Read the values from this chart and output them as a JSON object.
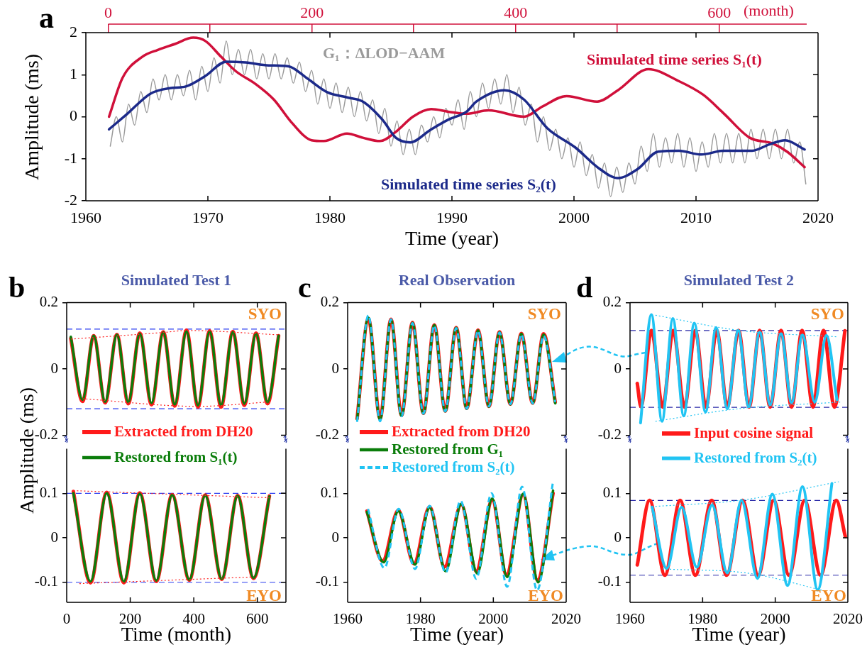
{
  "chart_data": [
    {
      "type": "line",
      "xlabel": "Time (year)",
      "ylabel": "Amplitude (ms)",
      "x2label": "(month)",
      "annotations": [
        "a"
      ],
      "xlim": [
        1960,
        2020
      ],
      "xticks": [
        1960,
        1970,
        1980,
        1990,
        2000,
        2010,
        2020
      ],
      "ylim": [
        -2,
        2
      ],
      "yticks": [
        -2,
        -1,
        0,
        1,
        2
      ],
      "x2lim": [
        -22,
        697
      ],
      "x2ticks": [
        0,
        {
          "value": 100,
          "label": null
        },
        200,
        {
          "value": 300,
          "label": null
        },
        400,
        {
          "value": 500,
          "label": null
        },
        600
      ],
      "series": [
        {
          "name": "G₁：ΔLOD−AAM",
          "color": "#9a9a9a",
          "x": [
            1962,
            1962.5,
            1963,
            1963.5,
            1964,
            1964.5,
            1965,
            1965.5,
            1966,
            1966.5,
            1967,
            1967.5,
            1968,
            1968.5,
            1969,
            1969.5,
            1970,
            1970.5,
            1971,
            1971.5,
            1972,
            1972.5,
            1973,
            1973.5,
            1974,
            1974.5,
            1975,
            1975.5,
            1976,
            1976.5,
            1977,
            1977.5,
            1978,
            1978.5,
            1979,
            1979.5,
            1980,
            1980.5,
            1981,
            1981.5,
            1982,
            1982.5,
            1983,
            1983.5,
            1984,
            1984.5,
            1985,
            1985.5,
            1986,
            1986.5,
            1987,
            1987.5,
            1988,
            1988.5,
            1989,
            1989.5,
            1990,
            1990.5,
            1991,
            1991.5,
            1992,
            1992.5,
            1993,
            1993.5,
            1994,
            1994.5,
            1995,
            1995.5,
            1996,
            1996.5,
            1997,
            1997.5,
            1998,
            1998.5,
            1999,
            1999.5,
            2000,
            2000.5,
            2001,
            2001.5,
            2002,
            2002.5,
            2003,
            2003.5,
            2004,
            2004.5,
            2005,
            2005.5,
            2006,
            2006.5,
            2007,
            2007.5,
            2008,
            2008.5,
            2009,
            2009.5,
            2010,
            2010.5,
            2011,
            2011.5,
            2012,
            2012.5,
            2013,
            2013.5,
            2014,
            2014.5,
            2015,
            2015.5,
            2016,
            2016.5,
            2017,
            2017.5,
            2018,
            2018.5,
            2019
          ],
          "values": [
            -0.7,
            0.0,
            -0.6,
            0.3,
            -0.2,
            0.6,
            0.1,
            0.9,
            0.4,
            1.0,
            0.4,
            1.0,
            0.5,
            1.1,
            0.4,
            1.2,
            0.6,
            1.4,
            0.8,
            1.8,
            1.0,
            1.6,
            1.0,
            1.6,
            0.9,
            1.5,
            0.9,
            1.5,
            0.9,
            1.4,
            0.8,
            1.3,
            0.6,
            1.1,
            0.3,
            0.9,
            0.2,
            0.8,
            0.1,
            0.7,
            0.0,
            0.6,
            -0.1,
            0.4,
            -0.4,
            0.2,
            -0.7,
            -0.1,
            -0.9,
            -0.3,
            -0.9,
            -0.2,
            -0.6,
            0.0,
            -0.5,
            0.2,
            -0.2,
            0.4,
            -0.3,
            0.6,
            0.0,
            0.8,
            0.2,
            0.9,
            0.3,
            1.0,
            0.1,
            0.7,
            -0.2,
            0.3,
            -0.6,
            0.0,
            -0.8,
            -0.3,
            -1.0,
            -0.5,
            -1.2,
            -0.6,
            -1.4,
            -0.9,
            -1.7,
            -1.1,
            -1.9,
            -1.2,
            -1.8,
            -1.1,
            -1.6,
            -0.7,
            -1.3,
            -0.4,
            -1.2,
            -0.5,
            -1.1,
            -0.4,
            -1.2,
            -0.5,
            -1.3,
            -0.6,
            -1.2,
            -0.4,
            -1.1,
            -0.4,
            -1.1,
            -0.4,
            -1.1,
            -0.3,
            -1.0,
            -0.3,
            -1.0,
            -0.3,
            -1.0,
            -0.3,
            -1.1,
            -0.6,
            -1.6
          ]
        },
        {
          "name": "Simulated time series S₁(t)",
          "color": "#d0103a",
          "x": [
            1961.9,
            1963.0,
            1964.6,
            1965.9,
            1967.3,
            1968.8,
            1969.8,
            1971.1,
            1972.3,
            1973.9,
            1975.4,
            1976.9,
            1978.5,
            1979.5,
            1981.4,
            1982.7,
            1984.1,
            1985.4,
            1986.8,
            1988.3,
            1989.7,
            1991.2,
            1993.0,
            1995.9,
            1997.4,
            1999.4,
            2001.9,
            2003.6,
            2006.1,
            2008.5,
            2010.6,
            2012.3,
            2014.4,
            2016.3,
            2017.5,
            2018.9
          ],
          "values": [
            0.0,
            0.92,
            1.42,
            1.59,
            1.73,
            1.88,
            1.8,
            1.42,
            1.08,
            0.78,
            0.41,
            -0.15,
            -0.56,
            -0.58,
            -0.4,
            -0.5,
            -0.58,
            -0.36,
            0.0,
            0.18,
            0.12,
            0.07,
            0.15,
            0.0,
            0.24,
            0.49,
            0.36,
            0.63,
            1.13,
            0.86,
            0.52,
            0.07,
            -0.5,
            -0.64,
            -0.84,
            -1.2
          ]
        },
        {
          "name": "Simulated time series S₂(t)",
          "color": "#1c2a8a",
          "x": [
            1961.9,
            1963.4,
            1965.3,
            1966.9,
            1968.2,
            1969.8,
            1971.5,
            1973.1,
            1975.0,
            1976.6,
            1978.1,
            1979.8,
            1981.4,
            1982.7,
            1984.3,
            1985.4,
            1986.6,
            1988.2,
            1989.7,
            1991.2,
            1992.0,
            1994.3,
            1995.9,
            1997.8,
            2000.1,
            2002.1,
            2003.6,
            2005.2,
            2006.9,
            2008.6,
            2010.4,
            2012.3,
            2014.6,
            2016.0,
            2017.3,
            2018.9
          ],
          "values": [
            -0.3,
            0.07,
            0.55,
            0.68,
            0.72,
            0.97,
            1.31,
            1.29,
            1.22,
            1.2,
            0.92,
            0.58,
            0.46,
            0.36,
            -0.07,
            -0.5,
            -0.61,
            -0.32,
            -0.07,
            0.12,
            0.36,
            0.63,
            0.41,
            -0.27,
            -0.73,
            -1.24,
            -1.46,
            -1.25,
            -0.83,
            -0.81,
            -0.9,
            -0.81,
            -0.81,
            -0.66,
            -0.56,
            -0.78
          ]
        }
      ]
    },
    {
      "type": "line",
      "title": "Simulated Test 1",
      "ylabel": "Amplitude (ms)",
      "annotations": [
        "b",
        "SYO"
      ],
      "xlim": [
        0,
        690
      ],
      "xticks": [
        0,
        200,
        400,
        600
      ],
      "ylim": [
        -0.2,
        0.2
      ],
      "yticks": [
        0.2,
        0,
        -0.2
      ],
      "tick_labels": "y",
      "ref_lines": [
        {
          "axis": "y",
          "value": 0.12,
          "color": "#2b3cf0",
          "line_style": "dashed"
        },
        {
          "axis": "y",
          "value": -0.12,
          "color": "#2b3cf0",
          "line_style": "dashed"
        }
      ],
      "series": [
        {
          "color": "#ff1a1a",
          "x": [
            13,
            50,
            85,
            121,
            158,
            194,
            230,
            267,
            304,
            340,
            377,
            413,
            450,
            486,
            523,
            559,
            596,
            632,
            667
          ],
          "values": [
            0.092,
            -0.098,
            0.1,
            -0.102,
            0.104,
            -0.105,
            0.108,
            -0.108,
            0.112,
            -0.112,
            0.117,
            -0.115,
            0.115,
            -0.115,
            0.113,
            -0.11,
            0.108,
            -0.105,
            0.1
          ]
        },
        {
          "color": "#0b7d0b",
          "x": [
            13,
            50,
            85,
            121,
            158,
            194,
            230,
            267,
            304,
            340,
            377,
            413,
            450,
            486,
            523,
            559,
            596,
            632,
            667
          ],
          "values": [
            0.097,
            -0.093,
            0.1,
            -0.099,
            0.103,
            -0.1,
            0.106,
            -0.103,
            0.11,
            -0.107,
            0.113,
            -0.11,
            0.113,
            -0.109,
            0.111,
            -0.105,
            0.106,
            -0.1,
            0.1
          ]
        },
        {
          "color": "#ff2020",
          "line_style": "dotted",
          "x": [
            13,
            304,
            377,
            667
          ],
          "values": [
            0.09,
            0.11,
            0.116,
            0.103
          ]
        },
        {
          "color": "#ff2020",
          "line_style": "dotted",
          "x": [
            50,
            413,
            632
          ],
          "values": [
            -0.09,
            -0.113,
            -0.1
          ]
        }
      ]
    },
    {
      "type": "line",
      "xlabel": "Time (month)",
      "annotations": [
        "EYO"
      ],
      "xlim": [
        0,
        690
      ],
      "xticks": [
        0,
        200,
        400,
        600
      ],
      "ylim": [
        -0.145,
        0.2
      ],
      "yticks": [
        0.1,
        0,
        -0.1
      ],
      "legend": "top left",
      "ref_lines": [
        {
          "axis": "y",
          "value": 0.1,
          "color": "#2b3cf0",
          "line_style": "dashed"
        },
        {
          "axis": "y",
          "value": -0.1,
          "color": "#2b3cf0",
          "line_style": "dashed"
        }
      ],
      "series": [
        {
          "name": "Extracted from DH20",
          "color": "#ff1a1a",
          "x": [
            21,
            75,
            126,
            180,
            230,
            282,
            332,
            386,
            436,
            488,
            538,
            588,
            638
          ],
          "values": [
            0.104,
            -0.101,
            0.102,
            -0.101,
            0.101,
            -0.098,
            0.097,
            -0.095,
            0.096,
            -0.093,
            0.095,
            -0.091,
            0.094
          ]
        },
        {
          "name": "Restored from S₁(t)",
          "color": "#0b7d0b",
          "x": [
            21,
            75,
            126,
            180,
            230,
            282,
            332,
            386,
            436,
            488,
            538,
            588,
            638
          ],
          "values": [
            0.1,
            -0.098,
            0.1,
            -0.098,
            0.099,
            -0.096,
            0.096,
            -0.094,
            0.095,
            -0.092,
            0.094,
            -0.09,
            0.093
          ]
        },
        {
          "color": "#ff2020",
          "line_style": "dotted",
          "x": [
            21,
            638
          ],
          "values": [
            0.106,
            0.09
          ]
        },
        {
          "color": "#ff2020",
          "line_style": "dotted",
          "x": [
            40,
            588
          ],
          "values": [
            -0.103,
            -0.088
          ]
        }
      ]
    },
    {
      "type": "line",
      "title": "Real Observation",
      "annotations": [
        "c",
        "SYO"
      ],
      "xlim": [
        1960,
        2020
      ],
      "xticks": [
        1960,
        1980,
        2000,
        2020
      ],
      "ylim": [
        -0.2,
        0.2
      ],
      "yticks": [
        0.2,
        0,
        -0.2
      ],
      "tick_labels": "y",
      "series": [
        {
          "color": "#ff1a1a",
          "x": [
            1962.6,
            1965.7,
            1968.9,
            1971.9,
            1974.8,
            1977.8,
            1980.8,
            1983.8,
            1986.8,
            1989.8,
            1992.7,
            1995.8,
            1998.8,
            2001.7,
            2004.7,
            2007.7,
            2010.8,
            2013.8,
            2017.0
          ],
          "values": [
            -0.15,
            0.152,
            -0.15,
            0.15,
            -0.14,
            0.14,
            -0.134,
            0.133,
            -0.127,
            0.125,
            -0.119,
            0.117,
            -0.113,
            0.112,
            -0.106,
            0.107,
            -0.103,
            0.106,
            -0.1
          ]
        },
        {
          "color": "#0b7d0b",
          "x": [
            1962.6,
            1965.7,
            1968.9,
            1971.9,
            1974.8,
            1977.8,
            1980.8,
            1983.8,
            1986.8,
            1989.8,
            1992.7,
            1995.8,
            1998.8,
            2001.7,
            2004.7,
            2007.7,
            2010.8,
            2013.8,
            2017.0
          ],
          "values": [
            -0.153,
            0.154,
            -0.153,
            0.149,
            -0.142,
            0.139,
            -0.135,
            0.132,
            -0.128,
            0.124,
            -0.12,
            0.116,
            -0.114,
            0.111,
            -0.107,
            0.106,
            -0.104,
            0.104,
            -0.104
          ]
        },
        {
          "color": "#21c4f3",
          "line_style": "dashed",
          "x": [
            1962.6,
            1965.7,
            1968.9,
            1971.9,
            1974.8,
            1977.8,
            1980.8,
            1983.8,
            1986.8,
            1989.8,
            1992.7,
            1995.8,
            1998.8,
            2001.7,
            2004.7,
            2007.7,
            2010.8,
            2013.8,
            2017.0
          ],
          "values": [
            -0.16,
            0.162,
            -0.158,
            0.15,
            -0.143,
            0.138,
            -0.135,
            0.131,
            -0.128,
            0.123,
            -0.12,
            0.115,
            -0.113,
            0.11,
            -0.106,
            0.104,
            -0.104,
            0.1,
            -0.1
          ]
        }
      ]
    },
    {
      "type": "line",
      "xlabel": "Time (year)",
      "annotations": [
        "EYO"
      ],
      "xlim": [
        1960,
        2020
      ],
      "xticks": [
        1960,
        1980,
        2000,
        2020
      ],
      "ylim": [
        -0.145,
        0.2
      ],
      "yticks": [
        0.1,
        0,
        -0.1
      ],
      "legend": "top left",
      "series": [
        {
          "name": "Extracted from DH20",
          "color": "#ff1a1a",
          "x": [
            1965.3,
            1969.6,
            1973.9,
            1978.2,
            1982.5,
            1986.6,
            1991.2,
            1995.3,
            1999.7,
            2003.6,
            2008.2,
            2012.1,
            2016.4
          ],
          "values": [
            0.06,
            -0.052,
            0.062,
            -0.058,
            0.07,
            -0.065,
            0.075,
            -0.075,
            0.085,
            -0.083,
            0.097,
            -0.095,
            0.1
          ]
        },
        {
          "name": "Restored from G₁",
          "color": "#0b7d0b",
          "x": [
            1965.3,
            1969.9,
            1973.9,
            1978.5,
            1982.5,
            1986.9,
            1991.2,
            1995.6,
            1999.7,
            2003.8,
            2008.2,
            2012.3,
            2016.4
          ],
          "values": [
            0.058,
            -0.055,
            0.06,
            -0.06,
            0.068,
            -0.075,
            0.076,
            -0.08,
            0.088,
            -0.088,
            0.099,
            -0.1,
            0.106
          ]
        },
        {
          "name": "Restored from S₂(t)",
          "color": "#21c4f3",
          "line_style": "dashed",
          "x": [
            1965.6,
            1970.1,
            1974.0,
            1978.5,
            1982.5,
            1986.9,
            1991.0,
            1995.3,
            1999.5,
            2003.8,
            2007.9,
            2012.0,
            2016.3
          ],
          "values": [
            0.065,
            -0.068,
            0.065,
            -0.07,
            0.072,
            -0.078,
            0.083,
            -0.092,
            0.1,
            -0.11,
            0.115,
            -0.118,
            0.122
          ]
        }
      ]
    },
    {
      "type": "line",
      "title": "Simulated Test 2",
      "annotations": [
        "d",
        "SYO"
      ],
      "xlim": [
        1960,
        2020
      ],
      "xticks": [
        1960,
        1980,
        2000,
        2020
      ],
      "ylim": [
        -0.2,
        0.2
      ],
      "yticks": [
        0.2,
        0,
        -0.2
      ],
      "tick_labels": "y",
      "ref_lines": [
        {
          "axis": "y",
          "value": 0.116,
          "color": "#2a2aa8",
          "line_style": "dashed"
        },
        {
          "axis": "y",
          "value": -0.116,
          "color": "#2a2aa8",
          "line_style": "dashed"
        }
      ],
      "series": [
        {
          "color": "#ff1a1a",
          "x": [
            1962.0,
            1963.0,
            1965.9,
            1969.0,
            1971.9,
            1975.0,
            1978.0,
            1980.9,
            1983.9,
            1986.8,
            1989.9,
            1992.8,
            1995.7,
            1998.6,
            2001.6,
            2004.5,
            2007.4,
            2010.4,
            2013.3,
            2016.3,
            2019.2
          ],
          "values": [
            -0.044,
            -0.114,
            0.116,
            -0.115,
            0.116,
            -0.115,
            0.116,
            -0.115,
            0.116,
            -0.115,
            0.116,
            -0.115,
            0.116,
            -0.115,
            0.116,
            -0.115,
            0.116,
            -0.115,
            0.116,
            -0.115,
            0.115
          ]
        },
        {
          "color": "#21c4f3",
          "x": [
            1962.9,
            1965.9,
            1968.8,
            1971.8,
            1974.8,
            1977.7,
            1980.8,
            1983.7,
            1986.8,
            1989.8,
            1992.7,
            1995.7,
            1998.6,
            2001.6,
            2004.5,
            2007.5,
            2010.9,
            2014.1,
            2017.0
          ],
          "values": [
            -0.163,
            0.164,
            -0.158,
            0.152,
            -0.142,
            0.138,
            -0.13,
            0.125,
            -0.12,
            0.116,
            -0.114,
            0.111,
            -0.108,
            0.106,
            -0.102,
            0.102,
            -0.1,
            0.101,
            -0.093
          ]
        },
        {
          "color": "#21c4f3",
          "line_style": "dotted",
          "x": [
            1967.0,
            1990.3,
            2017.0
          ],
          "values": [
            0.162,
            0.116,
            0.097
          ]
        },
        {
          "color": "#21c4f3",
          "line_style": "dotted",
          "x": [
            1967.0,
            1990.0,
            2018.0
          ],
          "values": [
            -0.158,
            -0.12,
            -0.1
          ]
        }
      ]
    },
    {
      "type": "line",
      "xlabel": "Time (year)",
      "annotations": [
        "EYO"
      ],
      "xlim": [
        1960,
        2020
      ],
      "xticks": [
        1960,
        1980,
        2000,
        2020
      ],
      "ylim": [
        -0.145,
        0.2
      ],
      "yticks": [
        0.1,
        0,
        -0.1
      ],
      "legend": "top left",
      "ref_lines": [
        {
          "axis": "y",
          "value": 0.084,
          "color": "#2a2aa8",
          "line_style": "dashed"
        },
        {
          "axis": "y",
          "value": -0.084,
          "color": "#2a2aa8",
          "line_style": "dashed"
        }
      ],
      "series": [
        {
          "name": "Input cosine signal",
          "color": "#ff1a1a",
          "x": [
            1962.0,
            1965.4,
            1969.6,
            1973.8,
            1978.0,
            1982.5,
            1986.6,
            1991.0,
            1995.3,
            1999.6,
            2003.8,
            2008.1,
            2012.5,
            2016.8,
            2019.3
          ],
          "values": [
            -0.061,
            0.084,
            -0.084,
            0.084,
            -0.084,
            0.084,
            -0.084,
            0.084,
            -0.084,
            0.084,
            -0.084,
            0.084,
            -0.084,
            0.084,
            0.003
          ]
        },
        {
          "name": "Restored from S₂(t)",
          "color": "#21c4f3",
          "x": [
            1966.1,
            1970.1,
            1974.2,
            1978.4,
            1982.6,
            1986.8,
            1990.7,
            1995.1,
            1999.2,
            2003.4,
            2007.5,
            2011.7,
            2015.6
          ],
          "values": [
            0.069,
            -0.069,
            0.069,
            -0.066,
            0.074,
            -0.079,
            0.084,
            -0.091,
            0.098,
            -0.107,
            0.115,
            -0.117,
            0.122
          ]
        },
        {
          "color": "#21c4f3",
          "line_style": "dotted",
          "x": [
            1966,
            1991,
            2017.5
          ],
          "values": [
            0.07,
            0.085,
            0.126
          ]
        },
        {
          "color": "#21c4f3",
          "line_style": "dotted",
          "x": [
            1969,
            1993,
            2013
          ],
          "values": [
            -0.07,
            -0.08,
            -0.118
          ]
        }
      ]
    }
  ]
}
